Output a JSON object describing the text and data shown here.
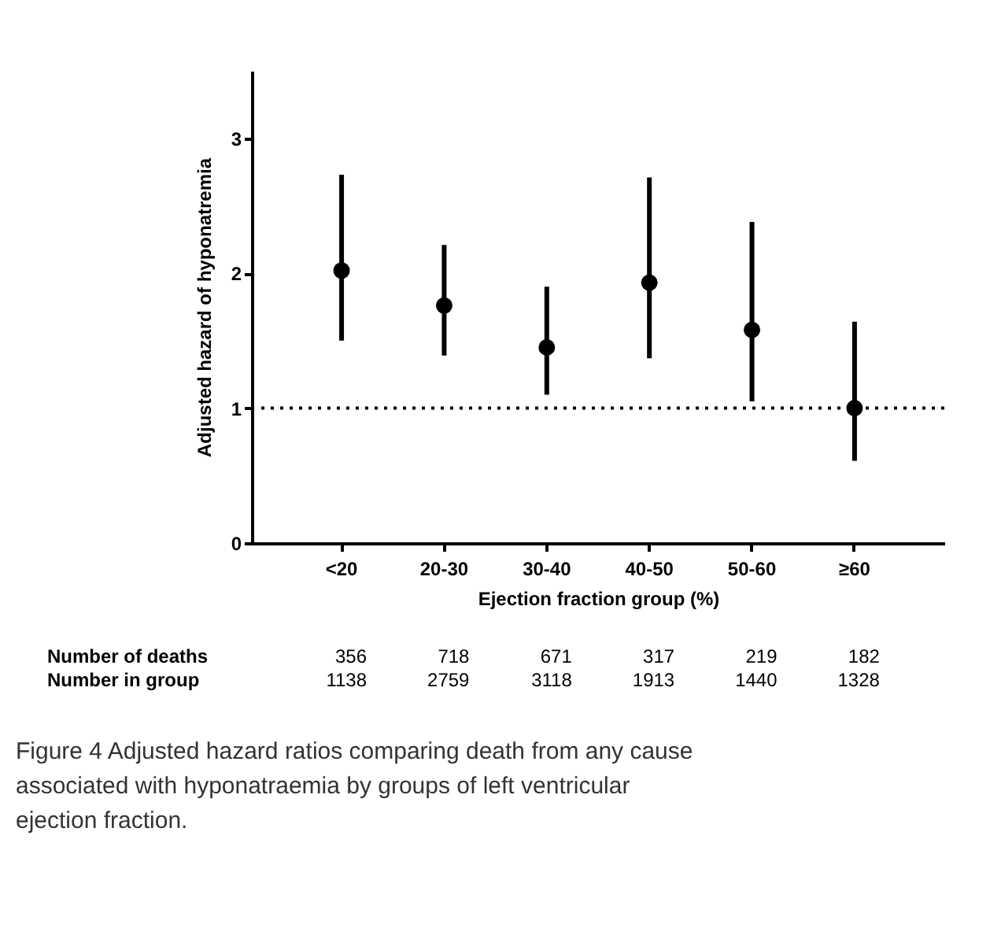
{
  "chart_data": {
    "type": "scatter",
    "categories": [
      "<20",
      "20-30",
      "30-40",
      "40-50",
      "50-60",
      "≥60"
    ],
    "xlabel": "Ejection fraction group (%)",
    "ylabel": "Adjusted hazard of hyponatremia",
    "series": [
      {
        "color": "#000000",
        "values": [
          2.02,
          1.76,
          1.45,
          1.93,
          1.58,
          1.0
        ],
        "errors": [
          [
            1.5,
            2.73
          ],
          [
            1.39,
            2.21
          ],
          [
            1.1,
            1.9
          ],
          [
            1.37,
            2.71
          ],
          [
            1.05,
            2.38
          ],
          [
            0.61,
            1.64
          ]
        ]
      }
    ],
    "marker": "circle",
    "ylim": [
      0,
      3.5
    ],
    "yticks": [
      0,
      1,
      2,
      3
    ],
    "grid": false,
    "ref_lines": [
      {
        "axis": "y",
        "value": 1,
        "line_style": "dotted",
        "color": "#000000"
      }
    ],
    "annotations": [
      "Number of deaths",
      "356",
      "718",
      "671",
      "317",
      "219",
      "182",
      "Number in group",
      "1138",
      "2759",
      "3118",
      "1913",
      "1440",
      "1328",
      "Figure 4 Adjusted hazard ratios comparing death from any cause associated with hyponatraemia by groups of left ventricular ejection fraction."
    ]
  }
}
